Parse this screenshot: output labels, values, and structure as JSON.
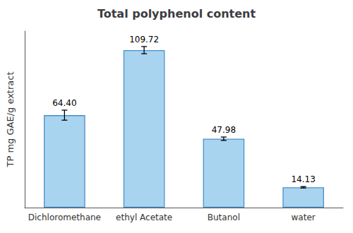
{
  "chart_data": {
    "type": "bar",
    "title": "Total polyphenol content",
    "ylabel": "TP mg GAE/g extract",
    "categories": [
      "Dichloromethane",
      "ethyl Acetate",
      "Butanol",
      "water"
    ],
    "values": [
      64.4,
      109.72,
      47.98,
      14.13
    ],
    "errors": [
      3.5,
      2.5,
      1.2,
      0.5
    ],
    "value_labels": [
      "64.40",
      "109.72",
      "47.98",
      "14.13"
    ],
    "data_labels": true,
    "color": "#A8D4F0",
    "ylim": [
      0,
      123
    ],
    "yticks": [],
    "tick_labels": "x",
    "grid": false
  }
}
